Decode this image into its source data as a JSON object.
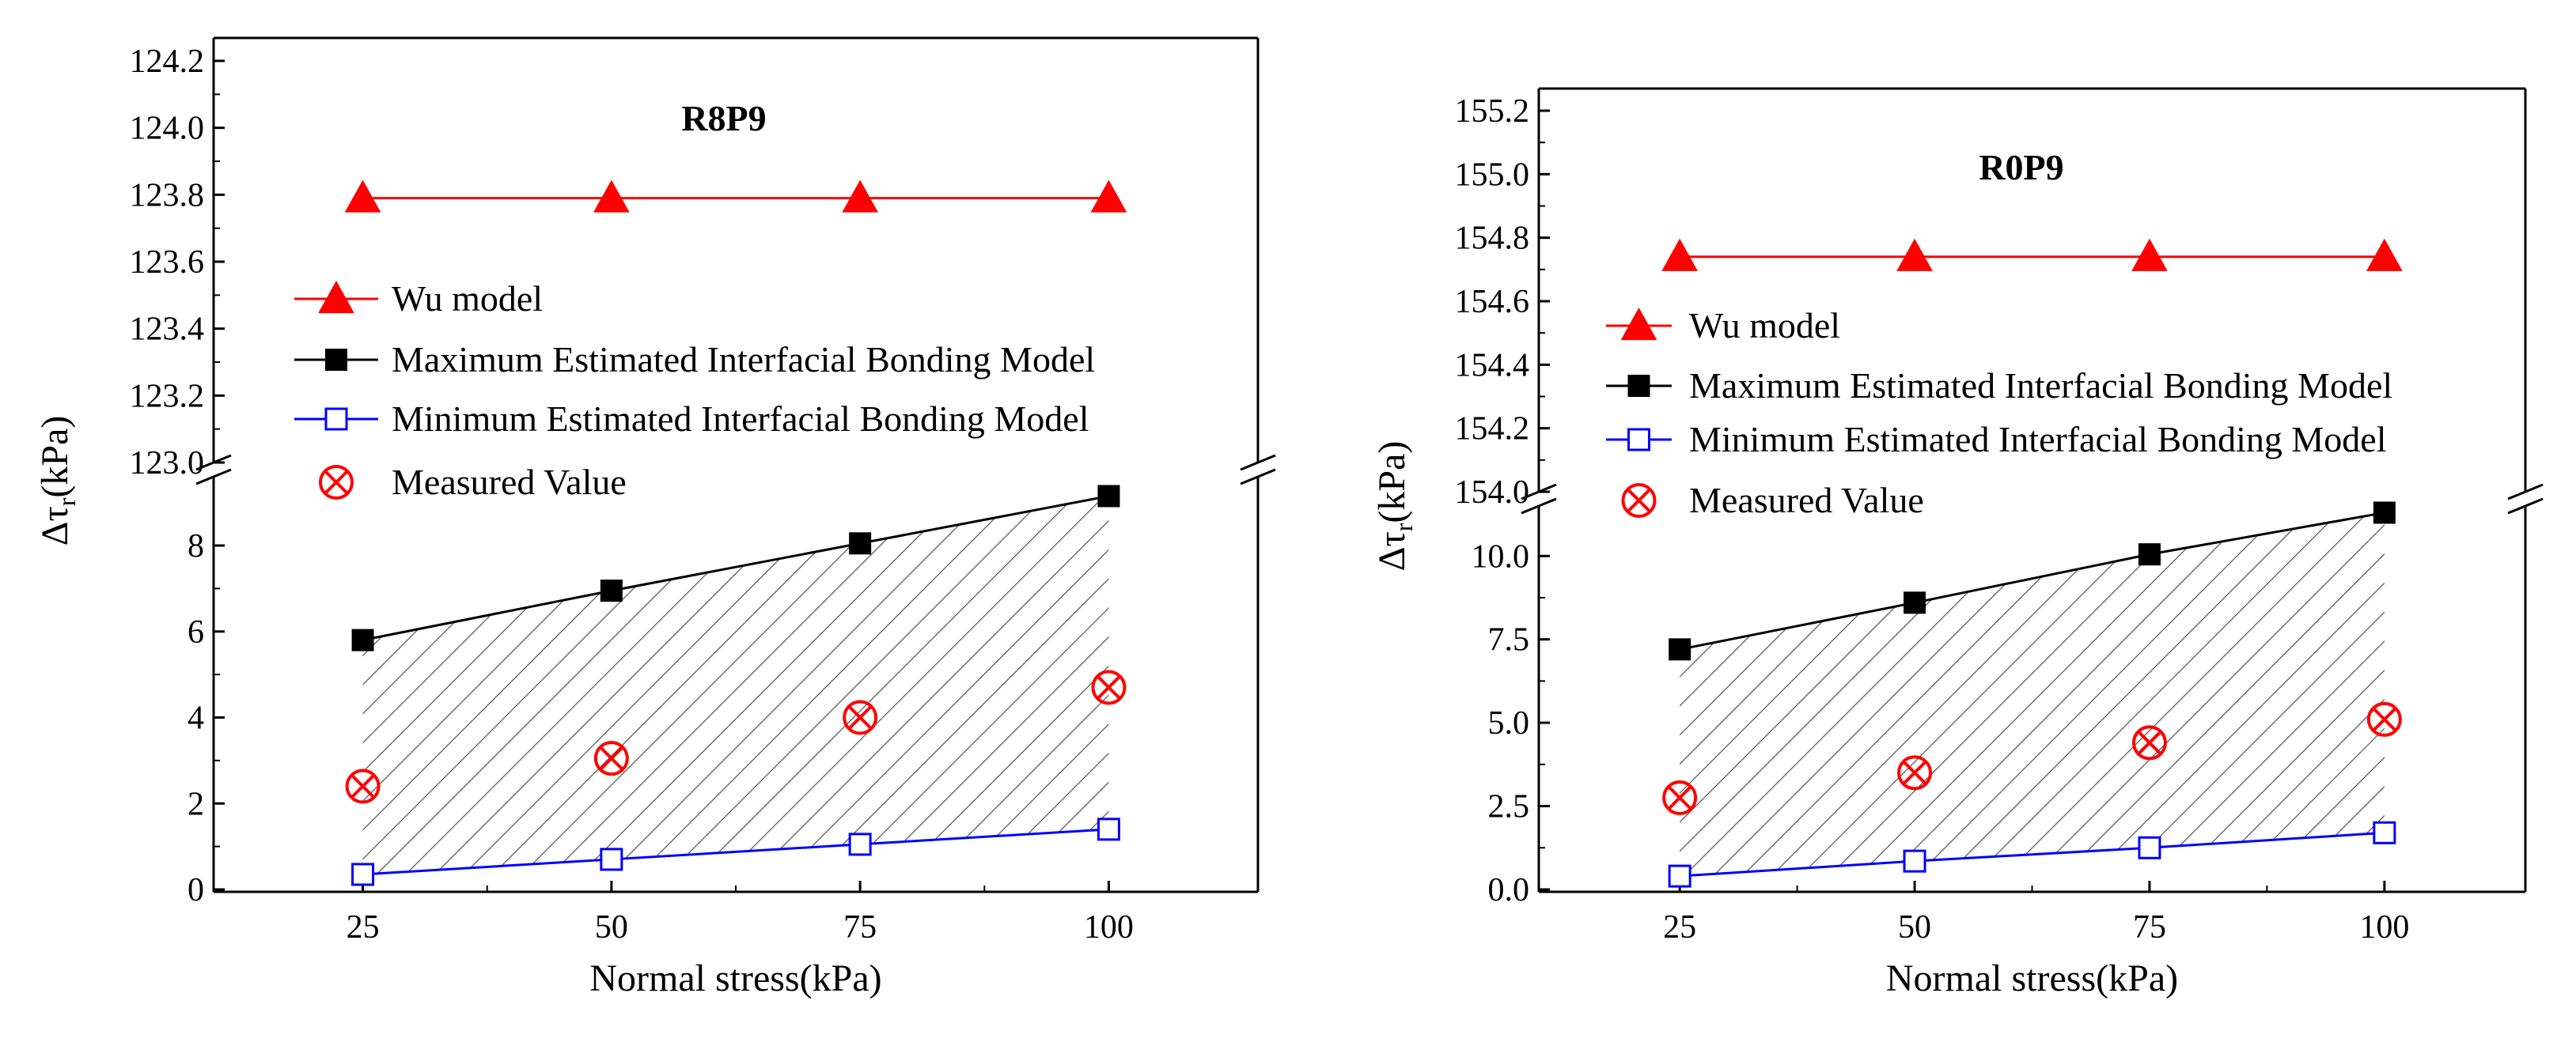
{
  "chart_data": [
    {
      "type": "line",
      "title": "R8P9",
      "xlabel": "Normal stress(kPa)",
      "ylabel": "Δτ",
      "ylabel_sub": "r",
      "ylabel_unit": "(kPa)",
      "x": [
        25,
        50,
        75,
        100
      ],
      "x_ticks": [
        "25",
        "50",
        "75",
        "100"
      ],
      "xlim": [
        10,
        115
      ],
      "y_break": true,
      "upper_ylim": [
        123.0,
        124.2
      ],
      "upper_ticks": [
        "123.0",
        "123.2",
        "123.4",
        "123.6",
        "123.8",
        "124.0",
        "124.2"
      ],
      "lower_ylim": [
        0,
        9.6
      ],
      "lower_ticks": [
        "0",
        "2",
        "4",
        "6",
        "8"
      ],
      "series": [
        {
          "name": "Wu model",
          "segment": "upper",
          "color": "#ff0000",
          "marker": "filled-triangle",
          "values": [
            123.79,
            123.79,
            123.79,
            123.79
          ]
        },
        {
          "name": "Maximum Estimated Interfacial Bonding Model",
          "segment": "lower",
          "color": "#000000",
          "marker": "filled-square",
          "values": [
            5.8,
            6.95,
            8.05,
            9.15
          ]
        },
        {
          "name": "Minimum Estimated Interfacial Bonding Model",
          "segment": "lower",
          "color": "#0000ff",
          "marker": "open-square",
          "values": [
            0.35,
            0.7,
            1.05,
            1.4
          ]
        },
        {
          "name": "Measured Value",
          "segment": "lower",
          "color": "#ff0000",
          "marker": "circle-x",
          "line": false,
          "values": [
            2.4,
            3.05,
            4.0,
            4.7
          ]
        }
      ],
      "shaded_region": "between maximum and minimum models (hatched)"
    },
    {
      "type": "line",
      "title": "R0P9",
      "xlabel": "Normal stress(kPa)",
      "ylabel": "Δτ",
      "ylabel_sub": "r",
      "ylabel_unit": "(kPa)",
      "x": [
        25,
        50,
        75,
        100
      ],
      "x_ticks": [
        "25",
        "50",
        "75",
        "100"
      ],
      "xlim": [
        10,
        115
      ],
      "y_break": true,
      "upper_ylim": [
        154.0,
        155.2
      ],
      "upper_ticks": [
        "154.0",
        "154.2",
        "154.4",
        "154.6",
        "154.8",
        "155.0",
        "155.2"
      ],
      "lower_ylim": [
        0,
        11.5
      ],
      "lower_ticks": [
        "0.0",
        "2.5",
        "5.0",
        "7.5",
        "10.0"
      ],
      "series": [
        {
          "name": "Wu model",
          "segment": "upper",
          "color": "#ff0000",
          "marker": "filled-triangle",
          "values": [
            154.74,
            154.74,
            154.74,
            154.74
          ]
        },
        {
          "name": "Maximum Estimated Interfacial Bonding Model",
          "segment": "lower",
          "color": "#000000",
          "marker": "filled-square",
          "values": [
            7.2,
            8.6,
            10.05,
            11.3
          ]
        },
        {
          "name": "Minimum Estimated Interfacial Bonding Model",
          "segment": "lower",
          "color": "#0000ff",
          "marker": "open-square",
          "values": [
            0.4,
            0.85,
            1.25,
            1.7
          ]
        },
        {
          "name": "Measured Value",
          "segment": "lower",
          "color": "#ff0000",
          "marker": "circle-x",
          "line": false,
          "values": [
            2.75,
            3.5,
            4.4,
            5.1
          ]
        }
      ],
      "shaded_region": "between maximum and minimum models (hatched)"
    }
  ]
}
